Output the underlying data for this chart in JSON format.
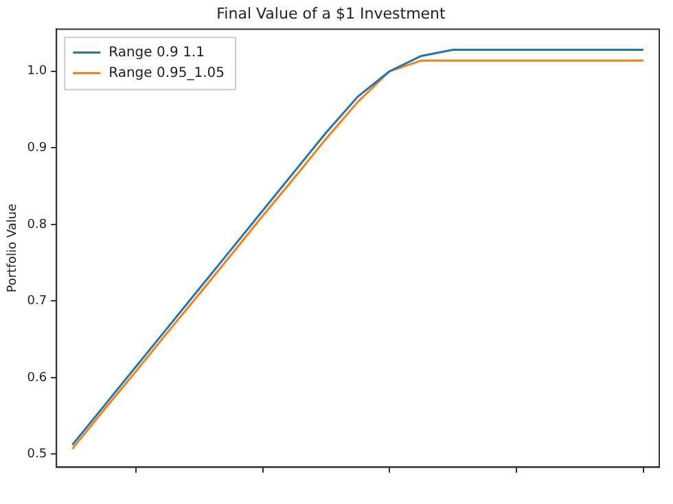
{
  "chart_data": {
    "type": "line",
    "title": "Final Value of a $1 Investment",
    "ylabel": "Portfolio Value",
    "categories": [
      null,
      null,
      null,
      null,
      null,
      null,
      null,
      null,
      null,
      null,
      null,
      null,
      null,
      null,
      null,
      null,
      null,
      null,
      null
    ],
    "ylim": [
      0.483,
      1.055
    ],
    "yticks": [
      {
        "value": 0.5,
        "label": "0.5"
      },
      {
        "value": 0.6,
        "label": "0.6"
      },
      {
        "value": 0.7,
        "label": "0.7"
      },
      {
        "value": 0.8,
        "label": "0.8"
      },
      {
        "value": 0.9,
        "label": "0.9"
      },
      {
        "value": 1,
        "label": "1.0"
      }
    ],
    "tick_labels": "y",
    "grid": false,
    "legend": "top left",
    "marker": "none",
    "line_style": "solid",
    "series": [
      {
        "name": "Range 0.9 1.1",
        "color": "#1f77b4",
        "values": [
          0.512,
          0.563,
          0.614,
          0.665,
          0.716,
          0.767,
          0.818,
          0.869,
          0.92,
          0.967,
          1.0,
          1.02,
          1.028,
          1.028,
          1.028,
          1.028,
          1.028,
          1.028,
          1.028
        ]
      },
      {
        "name": "Range 0.95_1.05",
        "color": "#ff7f0e",
        "values": [
          0.507,
          0.558,
          0.608,
          0.659,
          0.709,
          0.76,
          0.811,
          0.861,
          0.912,
          0.96,
          1.0,
          1.014,
          1.014,
          1.014,
          1.014,
          1.014,
          1.014,
          1.014,
          1.014
        ]
      }
    ]
  }
}
